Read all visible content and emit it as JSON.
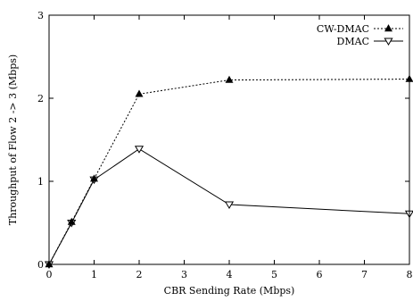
{
  "chart_data": {
    "type": "line",
    "title": "",
    "xlabel": "CBR Sending Rate (Mbps)",
    "ylabel": "Throughput of Flow 2 -> 3 (Mbps)",
    "xlim": [
      0,
      8
    ],
    "ylim": [
      0,
      3
    ],
    "xticks": [
      "0",
      "1",
      "2",
      "3",
      "4",
      "5",
      "6",
      "7",
      "8"
    ],
    "yticks": [
      "0",
      "1",
      "2",
      "3"
    ],
    "grid": false,
    "legend_position": "top-right",
    "series": [
      {
        "name": "CW-DMAC",
        "line_style": "dotted",
        "marker": "filled-triangle-up",
        "color": "#000000",
        "x": [
          0,
          0.5,
          1,
          2,
          4,
          8
        ],
        "y": [
          0,
          0.51,
          1.03,
          2.05,
          2.22,
          2.23
        ]
      },
      {
        "name": "DMAC",
        "line_style": "solid",
        "marker": "open-triangle-down",
        "color": "#000000",
        "x": [
          0,
          0.5,
          1,
          2,
          4,
          8
        ],
        "y": [
          0,
          0.5,
          1.02,
          1.39,
          0.72,
          0.61
        ]
      }
    ]
  }
}
